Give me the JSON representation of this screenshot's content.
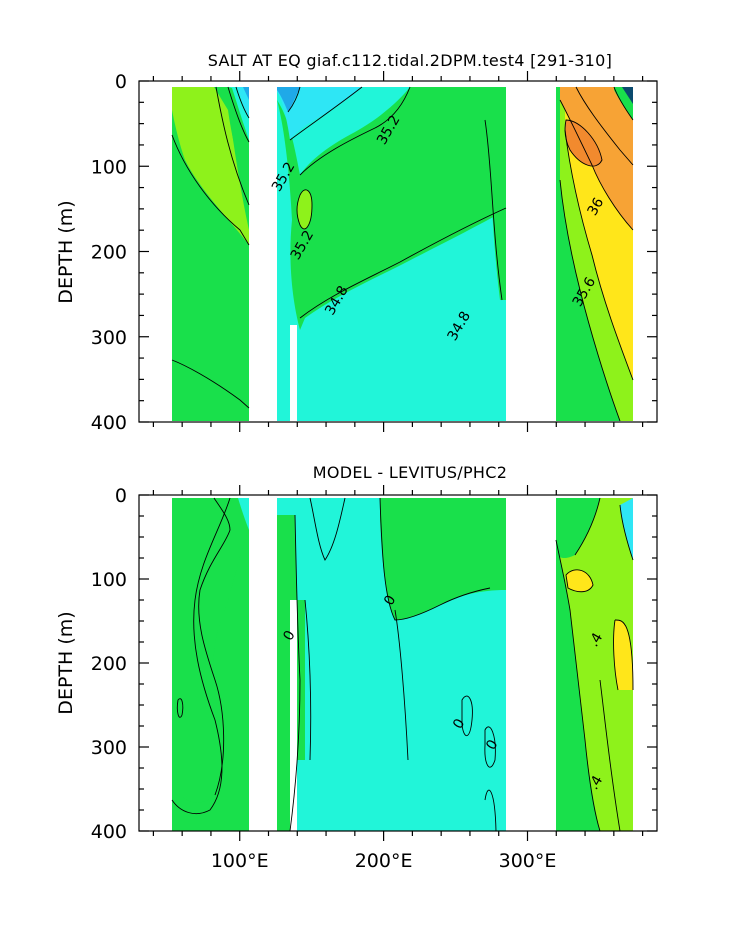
{
  "colors": {
    "land": "#ffffff",
    "very_low": "#0b4a6e",
    "low_blue": "#1fa9e8",
    "cyan": "#2ee6f5",
    "aqua": "#21f5d9",
    "green": "#19e04b",
    "lime": "#8ef21b",
    "yellow": "#ffe61a",
    "orange": "#f7a335",
    "dark_orange": "#f28a2e"
  },
  "chart_data": [
    {
      "type": "heatmap",
      "title": "SALT AT EQ giaf.c112.tidal.2DPM.test4 [291-310]",
      "xlabel": "",
      "ylabel": "DEPTH (m)",
      "xlim": [
        30,
        390
      ],
      "ylim": [
        400,
        0
      ],
      "y_ticks": [
        "0",
        "100",
        "200",
        "300",
        "400"
      ],
      "y_tick_values": [
        0,
        100,
        200,
        300,
        400
      ],
      "x_tick_values": [
        100,
        200,
        300
      ],
      "x_tick_labels": [
        "",
        "",
        ""
      ],
      "contour_labels": [
        {
          "text": "35.2",
          "x": 206,
          "y": 60
        },
        {
          "text": "35.2",
          "x": 133,
          "y": 115
        },
        {
          "text": "35.2",
          "x": 146,
          "y": 195
        },
        {
          "text": "34.8",
          "x": 170,
          "y": 260
        },
        {
          "text": "34.8",
          "x": 255,
          "y": 290
        },
        {
          "text": "36",
          "x": 350,
          "y": 150
        },
        {
          "text": "35.6",
          "x": 342,
          "y": 250
        }
      ]
    },
    {
      "type": "heatmap",
      "title": "MODEL - LEVITUS/PHC2",
      "xlabel": "",
      "ylabel": "DEPTH (m)",
      "xlim": [
        30,
        390
      ],
      "ylim": [
        400,
        0
      ],
      "y_ticks": [
        "0",
        "100",
        "200",
        "300",
        "400"
      ],
      "y_tick_values": [
        0,
        100,
        200,
        300,
        400
      ],
      "x_tick_values": [
        100,
        200,
        300
      ],
      "x_tick_labels": [
        "100°E",
        "200°E",
        "300°E"
      ],
      "contour_labels": [
        {
          "text": "0",
          "x": 137,
          "y": 170
        },
        {
          "text": "0",
          "x": 207,
          "y": 128
        },
        {
          "text": "0",
          "x": 255,
          "y": 275
        },
        {
          "text": "0",
          "x": 278,
          "y": 300
        },
        {
          "text": ".4",
          "x": 350,
          "y": 175
        },
        {
          "text": ".4",
          "x": 350,
          "y": 345
        }
      ]
    }
  ]
}
